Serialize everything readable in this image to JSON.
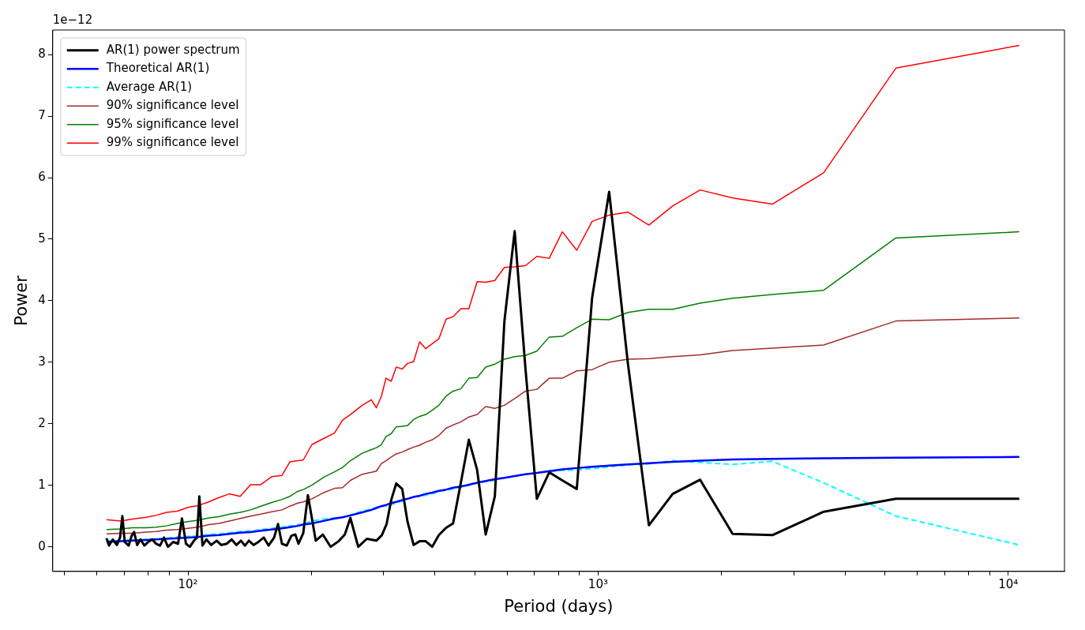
{
  "chart_data": {
    "type": "line",
    "xlabel": "Period (days)",
    "ylabel": "Power",
    "annotations": [
      "1e−12"
    ],
    "log": "x",
    "grid": false,
    "legend": "top left",
    "marker": "none",
    "xlim": [
      46.8,
      13710
    ],
    "ylim": [
      -0.4,
      8.4
    ],
    "xticks": [
      {
        "value": 50,
        "label": null
      },
      {
        "value": 60,
        "label": null
      },
      {
        "value": 70,
        "label": null
      },
      {
        "value": 80,
        "label": null
      },
      {
        "value": 90,
        "label": null
      },
      {
        "value": 100,
        "label": "10²"
      },
      {
        "value": 200,
        "label": null
      },
      {
        "value": 300,
        "label": null
      },
      {
        "value": 400,
        "label": null
      },
      {
        "value": 500,
        "label": null
      },
      {
        "value": 600,
        "label": null
      },
      {
        "value": 700,
        "label": null
      },
      {
        "value": 800,
        "label": null
      },
      {
        "value": 900,
        "label": null
      },
      {
        "value": 1000,
        "label": "10³"
      },
      {
        "value": 2000,
        "label": null
      },
      {
        "value": 3000,
        "label": null
      },
      {
        "value": 4000,
        "label": null
      },
      {
        "value": 5000,
        "label": null
      },
      {
        "value": 6000,
        "label": null
      },
      {
        "value": 7000,
        "label": null
      },
      {
        "value": 8000,
        "label": null
      },
      {
        "value": 9000,
        "label": null
      },
      {
        "value": 10000,
        "label": "10⁴"
      }
    ],
    "yticks": [
      0,
      1,
      2,
      3,
      4,
      5,
      6,
      7,
      8
    ],
    "x": [
      63.3,
      68.5,
      73.2,
      79,
      83.6,
      88.6,
      94.2,
      99.8,
      105.7,
      112.4,
      119,
      126.1,
      134.1,
      142.1,
      150.5,
      160,
      169.5,
      177.2,
      185.2,
      191,
      200.4,
      214.1,
      227.8,
      238.2,
      248.9,
      266,
      280,
      288,
      296,
      304,
      313,
      322,
      333,
      343,
      355,
      367,
      380,
      394,
      409,
      426,
      443,
      463,
      484,
      507,
      532,
      560,
      591,
      626,
      665,
      709,
      760,
      818,
      887,
      967,
      1064,
      1182,
      1330,
      1520,
      1773,
      2128,
      2660,
      3547,
      5320,
      10640
    ],
    "series": [
      {
        "name": "AR(1) power spectrum",
        "color": "#000000",
        "x": [
          63.3,
          64.2,
          65.6,
          67.1,
          68.3,
          69.2,
          70.1,
          71.7,
          72.9,
          73.9,
          75.2,
          76.6,
          78.3,
          80,
          81.8,
          83.6,
          85.5,
          87.4,
          89.4,
          92.1,
          94.6,
          96.7,
          98.9,
          101.1,
          103.4,
          105.2,
          106.6,
          108.5,
          110.9,
          113.9,
          117.5,
          120.6,
          124.4,
          127.8,
          131.2,
          134.7,
          137.7,
          140.8,
          144.6,
          148.5,
          153.1,
          157.2,
          162.2,
          165.8,
          169.5,
          174.1,
          178.7,
          182.7,
          186,
          191,
          196.1,
          204.9,
          213.2,
          222.8,
          232.9,
          241.3,
          248.9,
          260.1,
          273,
          288,
          297,
          305,
          313,
          322,
          333,
          343,
          355,
          367,
          380,
          394,
          409,
          426,
          443,
          463,
          484,
          507,
          532,
          560,
          591,
          626,
          665,
          709,
          760,
          818,
          887,
          967,
          1064,
          1182,
          1330,
          1520,
          1773,
          2128,
          2660,
          3547,
          5320,
          10640
        ],
        "values": [
          0.14,
          0.02,
          0.12,
          0.03,
          0.15,
          0.5,
          0.08,
          0.02,
          0.18,
          0.24,
          0.03,
          0.12,
          0.02,
          0.08,
          0.12,
          0.05,
          0.02,
          0.15,
          0,
          0.08,
          0.05,
          0.46,
          0.05,
          0,
          0.1,
          0.15,
          0.82,
          0.02,
          0.12,
          0.03,
          0.1,
          0.03,
          0.05,
          0.12,
          0.03,
          0.1,
          0.02,
          0.1,
          0.03,
          0.08,
          0.15,
          0.02,
          0.15,
          0.37,
          0.05,
          0.02,
          0.18,
          0.2,
          0.05,
          0.22,
          0.84,
          0.1,
          0.2,
          0,
          0.09,
          0.2,
          0.47,
          0,
          0.13,
          0.1,
          0.19,
          0.37,
          0.76,
          1.03,
          0.94,
          0.41,
          0.03,
          0.09,
          0.09,
          0,
          0.19,
          0.31,
          0.38,
          1.05,
          1.74,
          1.25,
          0.2,
          0.82,
          3.67,
          5.13,
          2.9,
          0.78,
          1.21,
          1.08,
          0.94,
          4.05,
          5.77,
          2.98,
          0.35,
          0.86,
          1.09,
          0.21,
          0.19,
          0.57,
          0.78,
          0.78
        ]
      },
      {
        "name": "Theoretical AR(1)",
        "color": "#0000ff",
        "values": [
          0.08,
          0.09,
          0.1,
          0.11,
          0.12,
          0.13,
          0.14,
          0.15,
          0.16,
          0.18,
          0.19,
          0.21,
          0.23,
          0.24,
          0.26,
          0.28,
          0.3,
          0.32,
          0.34,
          0.36,
          0.38,
          0.42,
          0.46,
          0.48,
          0.51,
          0.56,
          0.6,
          0.63,
          0.66,
          0.68,
          0.71,
          0.73,
          0.76,
          0.78,
          0.81,
          0.83,
          0.86,
          0.88,
          0.91,
          0.93,
          0.96,
          0.98,
          1.01,
          1.04,
          1.07,
          1.1,
          1.12,
          1.15,
          1.18,
          1.2,
          1.23,
          1.26,
          1.28,
          1.3,
          1.32,
          1.34,
          1.36,
          1.38,
          1.4,
          1.42,
          1.43,
          1.44,
          1.45,
          1.46
        ]
      },
      {
        "name": "Average AR(1)",
        "color": "#00ffff",
        "line_style": "dashed",
        "values": [
          0.1,
          0.1,
          0.11,
          0.12,
          0.13,
          0.14,
          0.16,
          0.17,
          0.18,
          0.2,
          0.21,
          0.23,
          0.25,
          0.26,
          0.28,
          0.3,
          0.32,
          0.34,
          0.36,
          0.37,
          0.42,
          0.45,
          0.47,
          0.48,
          0.52,
          0.58,
          0.62,
          0.64,
          0.66,
          0.66,
          0.68,
          0.72,
          0.74,
          0.78,
          0.82,
          0.82,
          0.84,
          0.86,
          0.9,
          0.92,
          0.94,
          0.97,
          1,
          1.04,
          1.06,
          1.08,
          1.12,
          1.15,
          1.18,
          1.2,
          1.22,
          1.24,
          1.25,
          1.27,
          1.3,
          1.33,
          1.35,
          1.4,
          1.37,
          1.34,
          1.39,
          1.04,
          0.5,
          0.03
        ]
      },
      {
        "name": "90% significance level",
        "color": "#a52a2a",
        "values": [
          0.21,
          0.22,
          0.22,
          0.24,
          0.25,
          0.27,
          0.28,
          0.3,
          0.32,
          0.36,
          0.38,
          0.42,
          0.46,
          0.5,
          0.53,
          0.57,
          0.6,
          0.66,
          0.71,
          0.73,
          0.78,
          0.88,
          0.95,
          0.96,
          1.08,
          1.18,
          1.21,
          1.23,
          1.35,
          1.4,
          1.46,
          1.51,
          1.54,
          1.58,
          1.62,
          1.65,
          1.7,
          1.74,
          1.81,
          1.93,
          1.98,
          2.03,
          2.11,
          2.15,
          2.28,
          2.25,
          2.3,
          2.41,
          2.53,
          2.56,
          2.74,
          2.74,
          2.86,
          2.88,
          3,
          3.05,
          3.06,
          3.09,
          3.12,
          3.19,
          3.23,
          3.28,
          3.67,
          3.72
        ]
      },
      {
        "name": "95% significance level",
        "color": "#008000",
        "values": [
          0.28,
          0.29,
          0.31,
          0.31,
          0.32,
          0.34,
          0.38,
          0.41,
          0.43,
          0.47,
          0.49,
          0.53,
          0.56,
          0.6,
          0.66,
          0.72,
          0.77,
          0.82,
          0.9,
          0.93,
          1,
          1.13,
          1.22,
          1.29,
          1.4,
          1.52,
          1.58,
          1.61,
          1.66,
          1.79,
          1.84,
          1.95,
          1.96,
          1.97,
          2.07,
          2.12,
          2.15,
          2.22,
          2.3,
          2.45,
          2.53,
          2.57,
          2.74,
          2.75,
          2.92,
          2.97,
          3.05,
          3.09,
          3.11,
          3.18,
          3.41,
          3.42,
          3.56,
          3.7,
          3.69,
          3.81,
          3.86,
          3.86,
          3.96,
          4.04,
          4.1,
          4.17,
          5.02,
          5.12
        ]
      },
      {
        "name": "99% significance level",
        "color": "#ff0000",
        "values": [
          0.44,
          0.42,
          0.45,
          0.48,
          0.51,
          0.56,
          0.58,
          0.64,
          0.67,
          0.73,
          0.8,
          0.86,
          0.82,
          1.01,
          1.01,
          1.14,
          1.16,
          1.38,
          1.4,
          1.41,
          1.66,
          1.76,
          1.85,
          2.06,
          2.15,
          2.3,
          2.39,
          2.26,
          2.44,
          2.74,
          2.69,
          2.92,
          2.89,
          2.98,
          3.01,
          3.33,
          3.22,
          3.3,
          3.38,
          3.7,
          3.74,
          3.87,
          3.87,
          4.31,
          4.3,
          4.33,
          4.54,
          4.55,
          4.57,
          4.72,
          4.69,
          5.12,
          4.82,
          5.29,
          5.39,
          5.44,
          5.23,
          5.54,
          5.8,
          5.67,
          5.57,
          6.08,
          7.78,
          8.15
        ]
      }
    ]
  }
}
